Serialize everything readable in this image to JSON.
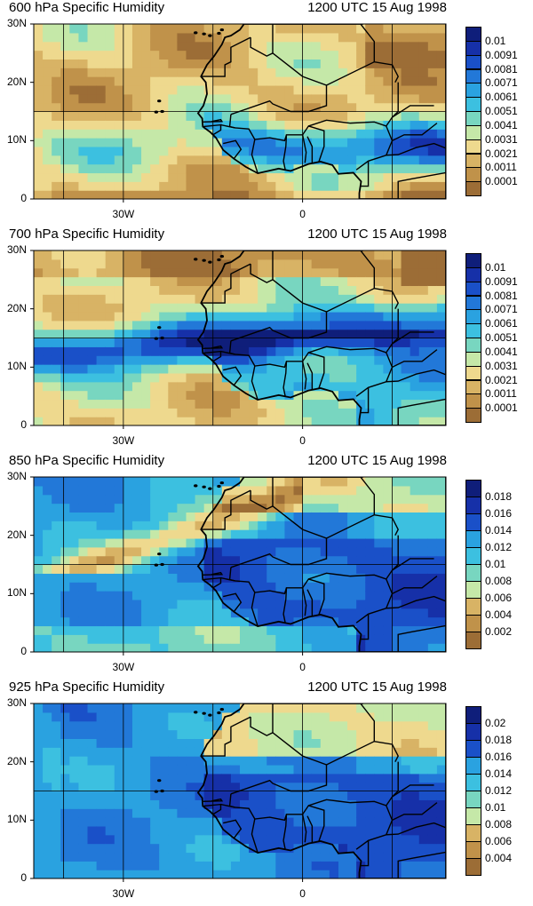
{
  "time_label": "1200 UTC 15 Aug 1998",
  "axes": {
    "y_ticks": [
      "30N",
      "20N",
      "10N",
      "0"
    ],
    "x_ticks": [
      "30W",
      "0"
    ]
  },
  "panels": [
    {
      "title": "600 hPa Specific Humidity",
      "colorbar": [
        "0.01",
        "0.0091",
        "0.0081",
        "0.0071",
        "0.0061",
        "0.0051",
        "0.0041",
        "0.0031",
        "0.0021",
        "0.0011",
        "0.0001"
      ],
      "regime": 0
    },
    {
      "title": "700 hPa Specific Humidity",
      "colorbar": [
        "0.01",
        "0.0091",
        "0.0081",
        "0.0071",
        "0.0061",
        "0.0051",
        "0.0041",
        "0.0031",
        "0.0021",
        "0.0011",
        "0.0001"
      ],
      "regime": 1
    },
    {
      "title": "850 hPa Specific Humidity",
      "colorbar": [
        "0.018",
        "0.016",
        "0.014",
        "0.012",
        "0.01",
        "0.008",
        "0.006",
        "0.004",
        "0.002"
      ],
      "regime": 2
    },
    {
      "title": "925 hPa Specific Humidity",
      "colorbar": [
        "0.02",
        "0.018",
        "0.016",
        "0.014",
        "0.012",
        "0.01",
        "0.008",
        "0.006",
        "0.004"
      ],
      "regime": 3
    }
  ],
  "palette": [
    "#9c6d36",
    "#c0924a",
    "#d8b365",
    "#eed98e",
    "#c5e8a8",
    "#78d6c0",
    "#3cc0e0",
    "#2aa2e0",
    "#2278d8",
    "#1a50c8",
    "#1630a8",
    "#0f1e7a"
  ]
}
